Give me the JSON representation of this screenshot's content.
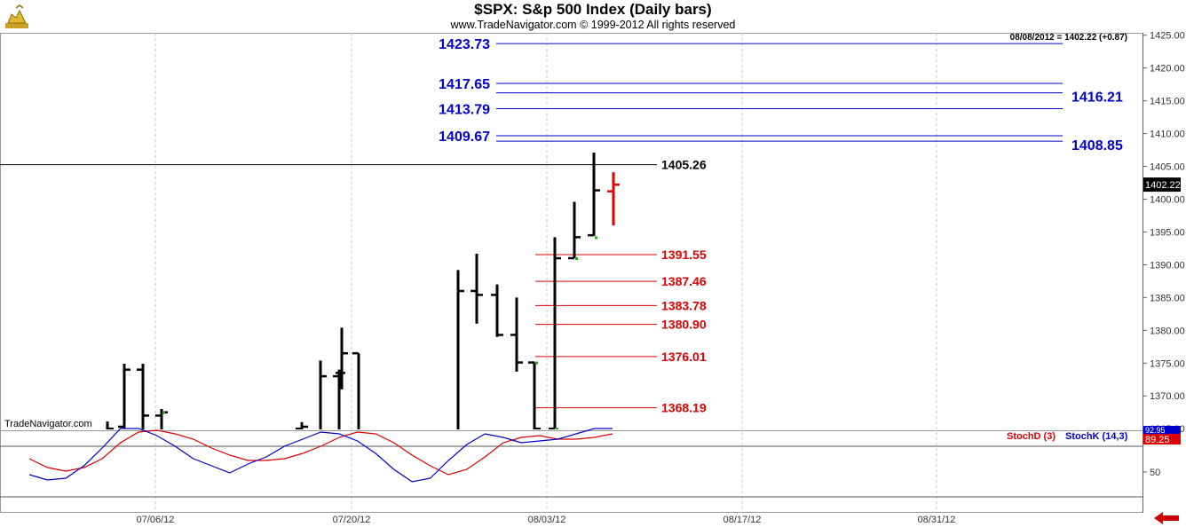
{
  "window": {
    "title": "$SPX:  S&p 500 Index  (Daily bars)",
    "copyright": "www.TradeNavigator.com © 1999-2012 All rights reserved",
    "watermark": "TradeNavigator.com",
    "logo_icon": "gold-bull-logo-icon",
    "nav_icon": "red-left-arrow-icon"
  },
  "colors": {
    "bar": "#000000",
    "bar_last": "#e00000",
    "blue_level": "#0000cc",
    "red_level": "#dd0000",
    "stoch_d": "#dd0000",
    "stoch_k": "#0000cc",
    "grid": "#c8c8c8",
    "marker": "#22aa22"
  },
  "chart_data": {
    "type": "ohlc",
    "symbol": "$SPX",
    "title": "$SPX:  S&p 500 Index  (Daily bars)",
    "last_quote": "08/08/2012 = 1402.22 (+0.87)",
    "last_price": "1402.22",
    "y_axis": {
      "range": [
        1365,
        1425
      ],
      "ticks": [
        "1425.00",
        "1420.00",
        "1415.00",
        "1410.00",
        "1405.00",
        "1400.00",
        "1395.00",
        "1390.00",
        "1385.00",
        "1380.00",
        "1375.00",
        "1370.00",
        "1365.00"
      ]
    },
    "x_axis": {
      "labels": [
        "07/06/12",
        "07/20/12",
        "08/03/12",
        "08/17/12",
        "08/31/12"
      ]
    },
    "bars": [
      {
        "date": "06/27/12",
        "open": 1362.0,
        "high": 1366.1,
        "low": 1362.0,
        "close": 1365.0
      },
      {
        "date": "06/28/12",
        "open": 1363.0,
        "high": 1363.9,
        "low": 1350.0,
        "close": 1363.0
      },
      {
        "date": "06/29/12",
        "open": 1365.3,
        "high": 1374.9,
        "low": 1365.0,
        "close": 1374.0
      },
      {
        "date": "07/02/12",
        "open": 1374.0,
        "high": 1374.9,
        "low": 1356.0,
        "close": 1367.0
      },
      {
        "date": "07/03/12",
        "open": 1367.0,
        "high": 1368.0,
        "low": 1358.0,
        "close": 1367.5
      },
      {
        "date": "07/10/12",
        "open": 1365.0,
        "high": 1366.0,
        "low": 1350.0,
        "close": 1365.3
      },
      {
        "date": "07/17/12",
        "open": 1363.0,
        "high": 1375.4,
        "low": 1358.0,
        "close": 1373.0
      },
      {
        "date": "07/18/12",
        "open": 1373.0,
        "high": 1374.0,
        "low": 1355.0,
        "close": 1373.5
      },
      {
        "date": "07/19/12",
        "open": 1373.5,
        "high": 1380.4,
        "low": 1371.0,
        "close": 1376.5
      },
      {
        "date": "07/20/12",
        "open": 1376.5,
        "high": 1376.5,
        "low": 1362.0,
        "close": 1362.5
      },
      {
        "date": "07/27/12",
        "open": 1362.0,
        "high": 1389.2,
        "low": 1360.0,
        "close": 1386.0
      },
      {
        "date": "07/30/12",
        "open": 1386.0,
        "high": 1391.7,
        "low": 1381.0,
        "close": 1385.4
      },
      {
        "date": "07/31/12",
        "open": 1385.4,
        "high": 1387.0,
        "low": 1379.0,
        "close": 1379.3
      },
      {
        "date": "08/01/12",
        "open": 1379.3,
        "high": 1385.0,
        "low": 1373.7,
        "close": 1375.1
      },
      {
        "date": "08/02/12",
        "open": 1375.1,
        "high": 1375.1,
        "low": 1364.0,
        "close": 1365.0
      },
      {
        "date": "08/03/12",
        "open": 1365.0,
        "high": 1394.2,
        "low": 1365.0,
        "close": 1390.99
      },
      {
        "date": "08/06/12",
        "open": 1391.0,
        "high": 1399.6,
        "low": 1391.0,
        "close": 1394.2
      },
      {
        "date": "08/07/12",
        "open": 1394.5,
        "high": 1407.1,
        "low": 1394.4,
        "close": 1401.35
      },
      {
        "date": "08/08/12",
        "open": 1401.2,
        "high": 1404.1,
        "low": 1396.0,
        "close": 1402.22
      }
    ],
    "levels": [
      {
        "value": 1423.73,
        "label": "1423.73",
        "color": "blue",
        "side": "left"
      },
      {
        "value": 1417.65,
        "label": "1417.65",
        "color": "blue",
        "side": "left"
      },
      {
        "value": 1416.21,
        "label": "1416.21",
        "color": "blue",
        "side": "right"
      },
      {
        "value": 1413.79,
        "label": "1413.79",
        "color": "blue",
        "side": "left"
      },
      {
        "value": 1409.67,
        "label": "1409.67",
        "color": "blue",
        "side": "left"
      },
      {
        "value": 1408.85,
        "label": "1408.85",
        "color": "blue",
        "side": "right"
      },
      {
        "value": 1405.26,
        "label": "1405.26",
        "color": "black",
        "side": "full"
      },
      {
        "value": 1391.55,
        "label": "1391.55",
        "color": "red",
        "side": "mid"
      },
      {
        "value": 1387.46,
        "label": "1387.46",
        "color": "red",
        "side": "mid"
      },
      {
        "value": 1383.78,
        "label": "1383.78",
        "color": "red",
        "side": "mid"
      },
      {
        "value": 1380.9,
        "label": "1380.90",
        "color": "red",
        "side": "mid"
      },
      {
        "value": 1376.01,
        "label": "1376.01",
        "color": "red",
        "side": "mid"
      },
      {
        "value": 1368.19,
        "label": "1368.19",
        "color": "red",
        "side": "mid"
      }
    ],
    "stochastic": {
      "legend": [
        {
          "name": "StochD (3)",
          "color": "red"
        },
        {
          "name": "StochK (14,3)",
          "color": "blue"
        }
      ],
      "y_ticks": [
        "50"
      ],
      "value_labels": [
        "89.25",
        "92.95"
      ],
      "range": [
        0,
        100
      ],
      "stoch_d": [
        58,
        48,
        44,
        48,
        58,
        76,
        88,
        90,
        86,
        80,
        70,
        62,
        56,
        56,
        58,
        64,
        72,
        82,
        88,
        86,
        76,
        62,
        50,
        40,
        46,
        60,
        76,
        82,
        84,
        80,
        80,
        82,
        86
      ],
      "stoch_k": [
        40,
        34,
        36,
        50,
        70,
        92,
        92,
        84,
        72,
        58,
        50,
        42,
        52,
        60,
        72,
        80,
        88,
        86,
        78,
        64,
        46,
        32,
        36,
        56,
        74,
        86,
        82,
        76,
        78,
        80,
        86,
        92,
        92
      ]
    }
  }
}
